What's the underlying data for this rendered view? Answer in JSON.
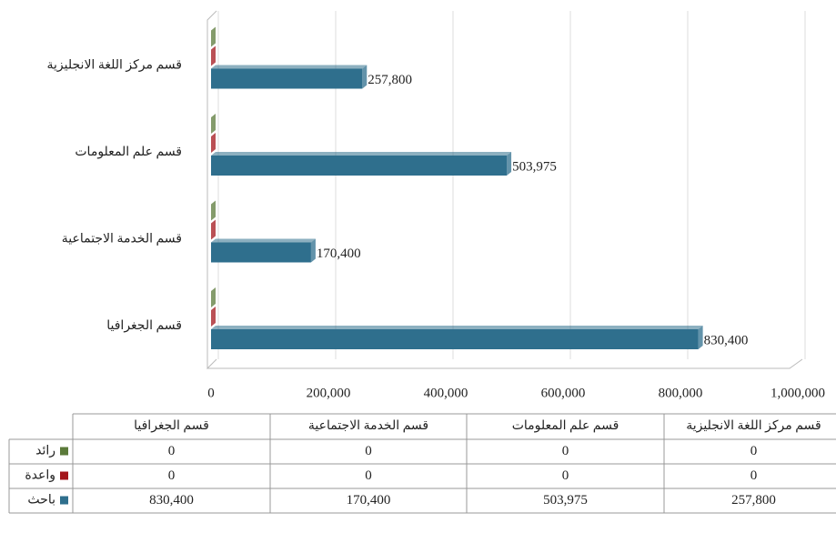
{
  "chart_data": {
    "type": "bar",
    "orientation": "horizontal",
    "categories": [
      "قسم الجغرافيا",
      "قسم الخدمة الاجتماعية",
      "قسم علم المعلومات",
      "قسم مركز اللغة الانجليزية"
    ],
    "series": [
      {
        "name": "رائد",
        "color": "#5b7a3a",
        "values": [
          0,
          0,
          0,
          0
        ]
      },
      {
        "name": "واعدة",
        "color": "#a3161c",
        "values": [
          0,
          0,
          0,
          0
        ]
      },
      {
        "name": "باحث",
        "color": "#2f6f8d",
        "values": [
          830400,
          170400,
          503975,
          257800
        ],
        "value_labels": [
          "830,400",
          "170,400",
          "503,975",
          "257,800"
        ]
      }
    ],
    "xlim": [
      0,
      1000000
    ],
    "xticks": [
      0,
      {
        "value": 200000,
        "label": "200,000"
      },
      {
        "value": 400000,
        "label": "400,000"
      },
      {
        "value": 600000,
        "label": "600,000"
      },
      {
        "value": 800000,
        "label": "800,000"
      },
      {
        "value": 1000000,
        "label": "1,000,000"
      }
    ],
    "grid": true,
    "data_table": true
  }
}
